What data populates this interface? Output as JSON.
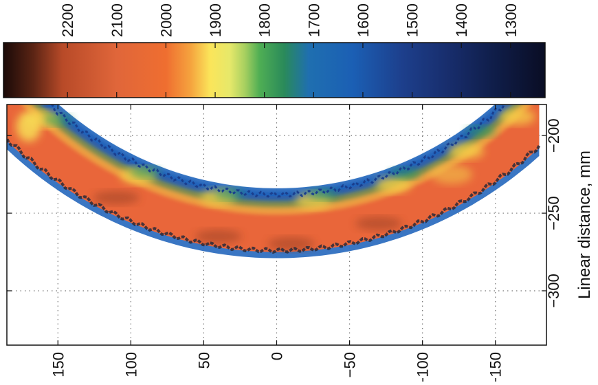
{
  "chart_data": {
    "type": "heatmap",
    "title": "",
    "colorbar": {
      "ticks": [
        2200,
        2100,
        2000,
        1900,
        1800,
        1700,
        1600,
        1500,
        1400,
        1300
      ],
      "range": [
        2330,
        1230
      ],
      "orientation": "horizontal-top",
      "colors": {
        "stops": [
          {
            "value": 2330,
            "color": "#1a0a08"
          },
          {
            "value": 2270,
            "color": "#5a2414"
          },
          {
            "value": 2210,
            "color": "#b84a28"
          },
          {
            "value": 2100,
            "color": "#e0663a"
          },
          {
            "value": 2000,
            "color": "#ef6e30"
          },
          {
            "value": 1950,
            "color": "#f5a33e"
          },
          {
            "value": 1910,
            "color": "#fbe55a"
          },
          {
            "value": 1870,
            "color": "#e6e86a"
          },
          {
            "value": 1840,
            "color": "#a8d060"
          },
          {
            "value": 1810,
            "color": "#4fae54"
          },
          {
            "value": 1760,
            "color": "#2a8a5a"
          },
          {
            "value": 1710,
            "color": "#1f6fb0"
          },
          {
            "value": 1620,
            "color": "#1b5fb4"
          },
          {
            "value": 1520,
            "color": "#1d3f8c"
          },
          {
            "value": 1420,
            "color": "#172c6a"
          },
          {
            "value": 1330,
            "color": "#0f1d48"
          },
          {
            "value": 1230,
            "color": "#0a0d24"
          }
        ]
      }
    },
    "axes": {
      "x": {
        "label": "",
        "ticks": [
          150,
          100,
          50,
          0,
          -50,
          -100,
          -150
        ],
        "range": [
          185,
          -185
        ]
      },
      "y": {
        "label": "Linear distance, mm",
        "ticks": [
          -200,
          -250,
          -300
        ],
        "range": [
          -180,
          -335
        ]
      },
      "grid": true
    },
    "field": {
      "arc_radius_outer": 277,
      "arc_radius_inner": 237,
      "extent_x": [
        -180,
        185
      ],
      "value_range": [
        1700,
        2250
      ]
    }
  }
}
